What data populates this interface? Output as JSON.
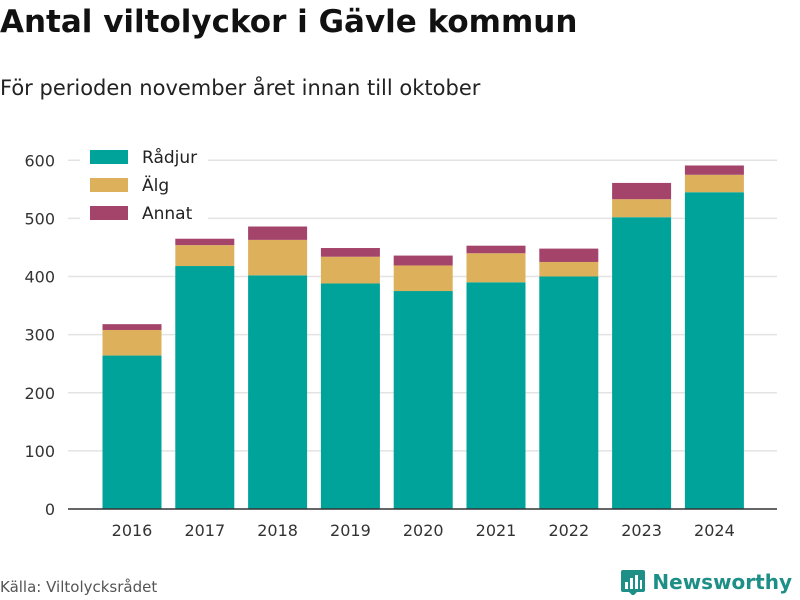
{
  "title": "Antal viltolyckor i Gävle kommun",
  "subtitle": "För perioden november året innan till oktober",
  "source": "Källa: Viltolycksrådet",
  "brand": {
    "name": "Newsworthy",
    "icon": "bar-chart-logo-icon",
    "color": "#1d8f87"
  },
  "chart_data": {
    "type": "bar",
    "stacked": true,
    "categories": [
      "2016",
      "2017",
      "2018",
      "2019",
      "2020",
      "2021",
      "2022",
      "2023",
      "2024"
    ],
    "series": [
      {
        "name": "Rådjur",
        "color": "#00a39a",
        "values": [
          264,
          418,
          402,
          388,
          375,
          390,
          400,
          502,
          545
        ]
      },
      {
        "name": "Älg",
        "color": "#ddb15c",
        "values": [
          44,
          36,
          61,
          46,
          44,
          50,
          25,
          31,
          30
        ]
      },
      {
        "name": "Annat",
        "color": "#a4446a",
        "values": [
          10,
          11,
          23,
          15,
          17,
          13,
          23,
          28,
          16
        ]
      }
    ],
    "ylim": [
      0,
      640
    ],
    "yticks": [
      0,
      100,
      200,
      300,
      400,
      500,
      600
    ],
    "grid": true,
    "legend": "top-left"
  }
}
